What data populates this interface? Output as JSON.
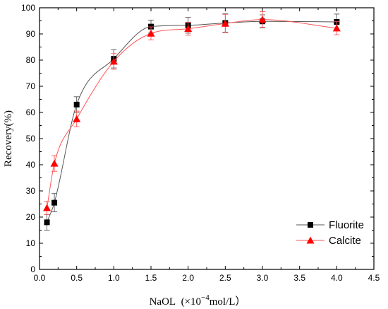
{
  "chart_data": {
    "type": "line",
    "title": "",
    "xlabel_main": "NaOL  (×10",
    "xlabel_exp": "−4",
    "xlabel_unit": "mol/L）",
    "ylabel": "Recovery(%)",
    "xlim": [
      0.0,
      4.5
    ],
    "ylim": [
      0,
      100
    ],
    "x_ticks": [
      "0.0",
      "0.5",
      "1.0",
      "1.5",
      "2.0",
      "2.5",
      "3.0",
      "3.5",
      "4.0",
      "4.5"
    ],
    "y_ticks": [
      "0",
      "10",
      "20",
      "30",
      "40",
      "50",
      "60",
      "70",
      "80",
      "90",
      "100"
    ],
    "grid": false,
    "legend_position": "bottom-right",
    "series": [
      {
        "name": "Fluorite",
        "marker": "square",
        "color": "#000000",
        "line_color": "#555555",
        "x": [
          0.1,
          0.2,
          0.5,
          1.0,
          1.5,
          2.0,
          2.5,
          3.0,
          4.0
        ],
        "y": [
          18.0,
          25.5,
          63.0,
          80.5,
          92.8,
          93.3,
          94.2,
          94.8,
          94.6
        ],
        "err": [
          3.0,
          3.5,
          3.0,
          3.5,
          2.5,
          3.0,
          3.5,
          2.5,
          3.0
        ]
      },
      {
        "name": "Calcite",
        "marker": "triangle",
        "color": "#ff0000",
        "line_color": "#ff5555",
        "x": [
          0.1,
          0.2,
          0.5,
          1.0,
          1.5,
          2.0,
          2.5,
          3.0,
          4.0
        ],
        "y": [
          23.5,
          40.5,
          57.5,
          79.5,
          90.2,
          92.0,
          94.0,
          95.5,
          92.2
        ],
        "err": [
          2.5,
          3.0,
          3.0,
          3.0,
          2.5,
          2.5,
          3.5,
          3.0,
          2.5
        ]
      }
    ]
  }
}
